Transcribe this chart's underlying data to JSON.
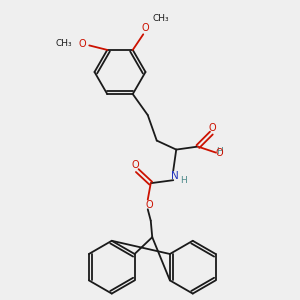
{
  "background_color": "#efefef",
  "bond_color": "#1a1a1a",
  "oxygen_color": "#cc1100",
  "nitrogen_color": "#2233bb",
  "hydroxyl_color": "#4a8888",
  "figsize": [
    3.0,
    3.0
  ],
  "dpi": 100,
  "xlim": [
    0,
    10
  ],
  "ylim": [
    0,
    10
  ]
}
